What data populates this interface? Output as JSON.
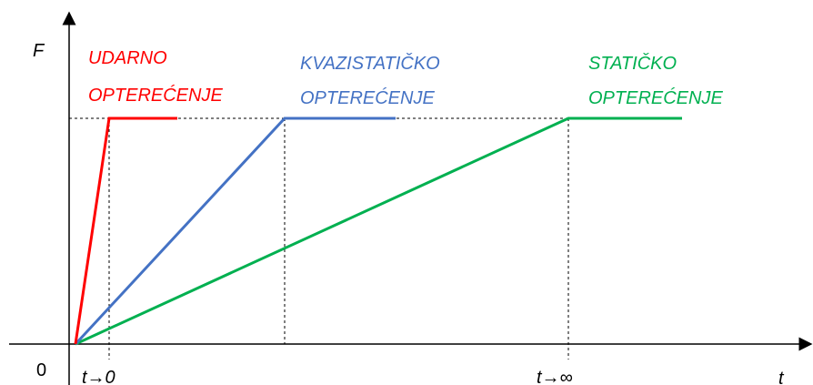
{
  "axes": {
    "y_label": "F",
    "origin": "0",
    "x_label": "t"
  },
  "time_marks": [
    "t→0",
    "t→∞"
  ],
  "loads": [
    {
      "lines": [
        "UDARNO",
        "OPTEREĆENJE"
      ]
    },
    {
      "lines": [
        "KVAZISTATIČKO",
        "OPTEREĆENJE"
      ]
    },
    {
      "lines": [
        "STATIČKO",
        "OPTEREĆENJE"
      ]
    }
  ]
}
